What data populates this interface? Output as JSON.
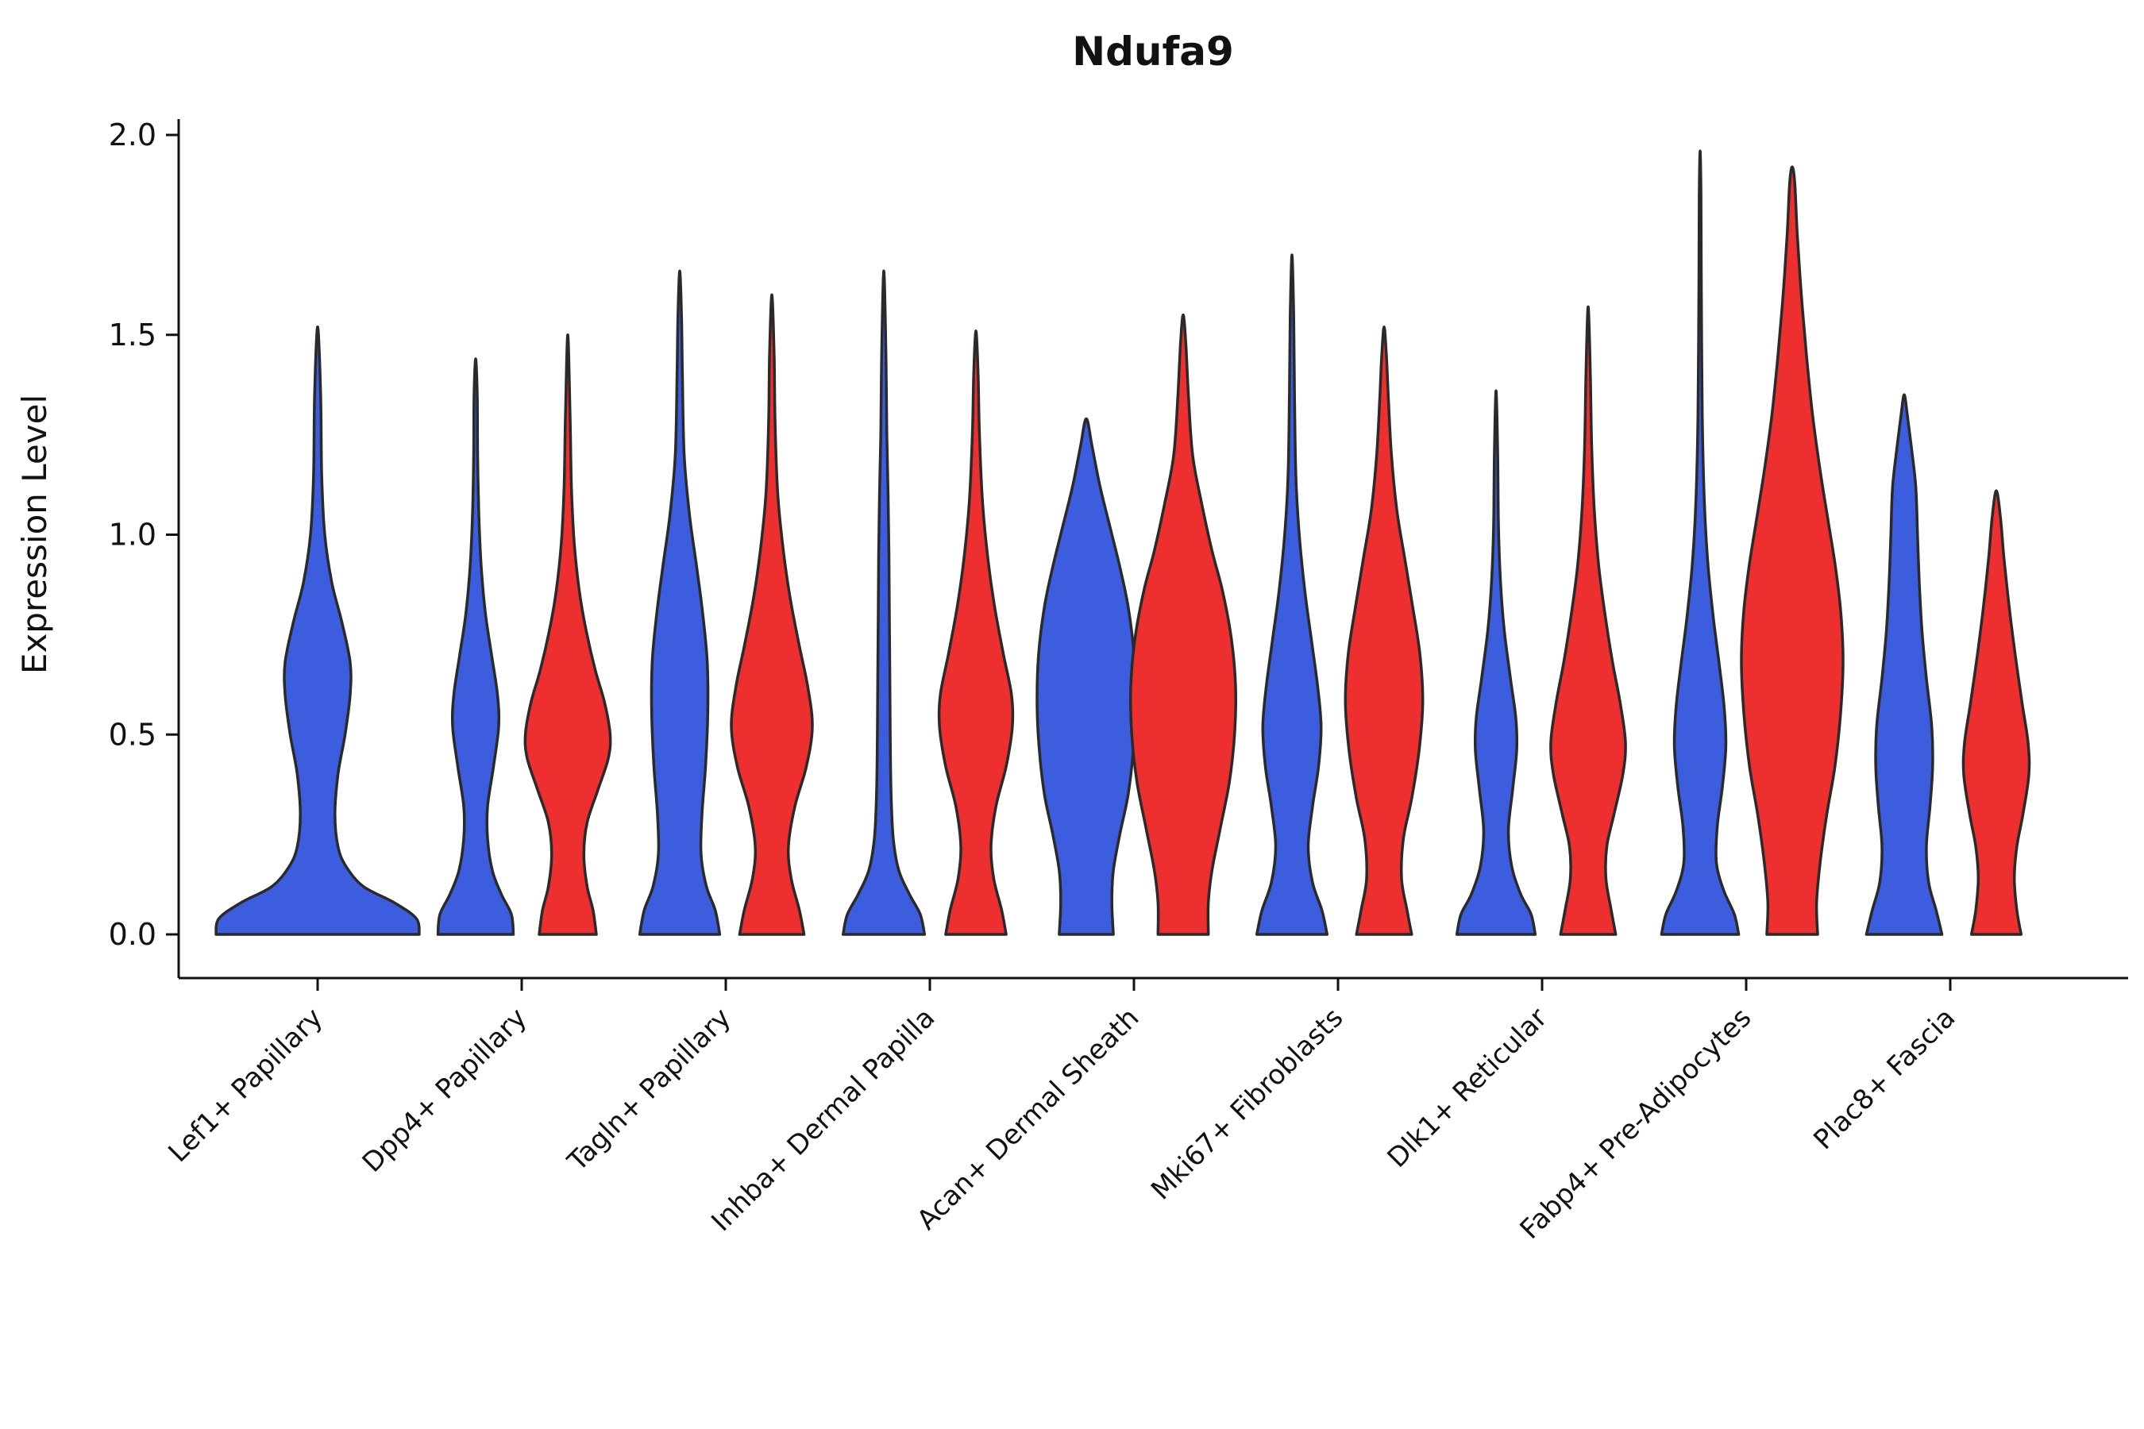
{
  "chart_data": {
    "type": "violin",
    "title": "Ndufa9",
    "ylabel": "Expression Level",
    "xlabel": "",
    "ylim": [
      0.0,
      2.0
    ],
    "yticks": [
      0.0,
      0.5,
      1.0,
      1.5,
      2.0
    ],
    "grid": false,
    "legend": "none",
    "colors": {
      "blue": "#3b5dde",
      "red": "#ee2f2f",
      "edge": "#2a2a2a"
    },
    "categories": [
      "Lef1+ Papillary",
      "Dpp4+ Papillary",
      "Tagln+ Papillary",
      "Inhba+ Dermal Papilla",
      "Acan+ Dermal Sheath",
      "Mki67+ Fibroblasts",
      "Dlk1+ Reticular",
      "Fabp4+ Pre-Adipocytes",
      "Plac8+ Fascia"
    ],
    "violins": [
      {
        "group": 0,
        "category": "Lef1+ Papillary",
        "side": "blue",
        "offset": 0,
        "halfwidth": 128,
        "max_expression": 1.52,
        "profile": [
          [
            0,
            1.0
          ],
          [
            0.04,
            0.97
          ],
          [
            0.08,
            0.75
          ],
          [
            0.12,
            0.45
          ],
          [
            0.17,
            0.28
          ],
          [
            0.22,
            0.2
          ],
          [
            0.3,
            0.17
          ],
          [
            0.4,
            0.2
          ],
          [
            0.5,
            0.27
          ],
          [
            0.6,
            0.32
          ],
          [
            0.68,
            0.32
          ],
          [
            0.78,
            0.24
          ],
          [
            0.88,
            0.14
          ],
          [
            1.0,
            0.07
          ],
          [
            1.15,
            0.04
          ],
          [
            1.35,
            0.03
          ],
          [
            1.52,
            0
          ]
        ]
      },
      {
        "group": 1,
        "category": "Dpp4+ Papillary",
        "side": "blue",
        "offset": -58,
        "halfwidth": 50,
        "max_expression": 1.44,
        "profile": [
          [
            0,
            0.95
          ],
          [
            0.05,
            0.9
          ],
          [
            0.1,
            0.65
          ],
          [
            0.16,
            0.42
          ],
          [
            0.24,
            0.3
          ],
          [
            0.32,
            0.3
          ],
          [
            0.42,
            0.45
          ],
          [
            0.52,
            0.58
          ],
          [
            0.6,
            0.55
          ],
          [
            0.7,
            0.4
          ],
          [
            0.8,
            0.25
          ],
          [
            0.92,
            0.14
          ],
          [
            1.05,
            0.08
          ],
          [
            1.2,
            0.05
          ],
          [
            1.35,
            0.04
          ],
          [
            1.44,
            0
          ]
        ]
      },
      {
        "group": 1,
        "category": "Dpp4+ Papillary",
        "side": "red",
        "offset": 58,
        "halfwidth": 58,
        "max_expression": 1.5,
        "profile": [
          [
            0,
            0.62
          ],
          [
            0.06,
            0.55
          ],
          [
            0.12,
            0.42
          ],
          [
            0.2,
            0.35
          ],
          [
            0.28,
            0.42
          ],
          [
            0.36,
            0.65
          ],
          [
            0.44,
            0.88
          ],
          [
            0.5,
            0.92
          ],
          [
            0.58,
            0.8
          ],
          [
            0.66,
            0.6
          ],
          [
            0.76,
            0.4
          ],
          [
            0.86,
            0.25
          ],
          [
            0.98,
            0.14
          ],
          [
            1.12,
            0.08
          ],
          [
            1.3,
            0.05
          ],
          [
            1.5,
            0
          ]
        ]
      },
      {
        "group": 2,
        "category": "Tagln+ Papillary",
        "side": "blue",
        "offset": -58,
        "halfwidth": 56,
        "max_expression": 1.66,
        "profile": [
          [
            0,
            0.9
          ],
          [
            0.06,
            0.8
          ],
          [
            0.12,
            0.6
          ],
          [
            0.2,
            0.48
          ],
          [
            0.3,
            0.5
          ],
          [
            0.42,
            0.58
          ],
          [
            0.55,
            0.63
          ],
          [
            0.68,
            0.62
          ],
          [
            0.8,
            0.52
          ],
          [
            0.92,
            0.38
          ],
          [
            1.05,
            0.22
          ],
          [
            1.2,
            0.1
          ],
          [
            1.4,
            0.06
          ],
          [
            1.55,
            0.04
          ],
          [
            1.66,
            0
          ]
        ]
      },
      {
        "group": 2,
        "category": "Tagln+ Papillary",
        "side": "red",
        "offset": 58,
        "halfwidth": 58,
        "max_expression": 1.6,
        "profile": [
          [
            0,
            0.7
          ],
          [
            0.06,
            0.6
          ],
          [
            0.14,
            0.42
          ],
          [
            0.22,
            0.36
          ],
          [
            0.32,
            0.5
          ],
          [
            0.42,
            0.75
          ],
          [
            0.52,
            0.88
          ],
          [
            0.62,
            0.78
          ],
          [
            0.72,
            0.6
          ],
          [
            0.84,
            0.4
          ],
          [
            0.96,
            0.25
          ],
          [
            1.1,
            0.13
          ],
          [
            1.28,
            0.07
          ],
          [
            1.45,
            0.05
          ],
          [
            1.6,
            0
          ]
        ]
      },
      {
        "group": 3,
        "category": "Inhba+ Dermal Papilla",
        "side": "blue",
        "offset": -58,
        "halfwidth": 54,
        "max_expression": 1.66,
        "profile": [
          [
            0,
            0.95
          ],
          [
            0.05,
            0.85
          ],
          [
            0.1,
            0.6
          ],
          [
            0.16,
            0.35
          ],
          [
            0.24,
            0.22
          ],
          [
            0.35,
            0.17
          ],
          [
            0.5,
            0.15
          ],
          [
            0.65,
            0.14
          ],
          [
            0.8,
            0.13
          ],
          [
            0.95,
            0.12
          ],
          [
            1.1,
            0.1
          ],
          [
            1.25,
            0.07
          ],
          [
            1.45,
            0.05
          ],
          [
            1.66,
            0
          ]
        ]
      },
      {
        "group": 3,
        "category": "Inhba+ Dermal Papilla",
        "side": "red",
        "offset": 58,
        "halfwidth": 56,
        "max_expression": 1.51,
        "profile": [
          [
            0,
            0.68
          ],
          [
            0.06,
            0.58
          ],
          [
            0.14,
            0.4
          ],
          [
            0.22,
            0.34
          ],
          [
            0.32,
            0.45
          ],
          [
            0.42,
            0.68
          ],
          [
            0.52,
            0.82
          ],
          [
            0.6,
            0.8
          ],
          [
            0.7,
            0.62
          ],
          [
            0.82,
            0.42
          ],
          [
            0.94,
            0.27
          ],
          [
            1.08,
            0.15
          ],
          [
            1.25,
            0.08
          ],
          [
            1.4,
            0.05
          ],
          [
            1.51,
            0
          ]
        ]
      },
      {
        "group": 4,
        "category": "Acan+ Dermal Sheath",
        "side": "blue",
        "offset": -60,
        "halfwidth": 62,
        "max_expression": 1.29,
        "profile": [
          [
            0,
            0.55
          ],
          [
            0.08,
            0.52
          ],
          [
            0.16,
            0.55
          ],
          [
            0.25,
            0.68
          ],
          [
            0.35,
            0.85
          ],
          [
            0.47,
            0.96
          ],
          [
            0.58,
            1.0
          ],
          [
            0.7,
            0.97
          ],
          [
            0.82,
            0.85
          ],
          [
            0.92,
            0.68
          ],
          [
            1.02,
            0.48
          ],
          [
            1.12,
            0.28
          ],
          [
            1.22,
            0.12
          ],
          [
            1.29,
            0
          ]
        ]
      },
      {
        "group": 4,
        "category": "Acan+ Dermal Sheath",
        "side": "red",
        "offset": 62,
        "halfwidth": 66,
        "max_expression": 1.55,
        "profile": [
          [
            0,
            0.48
          ],
          [
            0.08,
            0.48
          ],
          [
            0.16,
            0.55
          ],
          [
            0.26,
            0.7
          ],
          [
            0.38,
            0.88
          ],
          [
            0.5,
            0.98
          ],
          [
            0.62,
            1.0
          ],
          [
            0.74,
            0.92
          ],
          [
            0.86,
            0.75
          ],
          [
            0.96,
            0.55
          ],
          [
            1.08,
            0.35
          ],
          [
            1.2,
            0.18
          ],
          [
            1.35,
            0.1
          ],
          [
            1.48,
            0.05
          ],
          [
            1.55,
            0
          ]
        ]
      },
      {
        "group": 5,
        "category": "Mki67+ Fibroblasts",
        "side": "blue",
        "offset": -58,
        "halfwidth": 54,
        "max_expression": 1.7,
        "profile": [
          [
            0,
            0.82
          ],
          [
            0.06,
            0.7
          ],
          [
            0.13,
            0.48
          ],
          [
            0.22,
            0.38
          ],
          [
            0.32,
            0.48
          ],
          [
            0.42,
            0.62
          ],
          [
            0.52,
            0.68
          ],
          [
            0.62,
            0.6
          ],
          [
            0.74,
            0.45
          ],
          [
            0.86,
            0.3
          ],
          [
            1.0,
            0.17
          ],
          [
            1.15,
            0.09
          ],
          [
            1.35,
            0.06
          ],
          [
            1.55,
            0.04
          ],
          [
            1.7,
            0
          ]
        ]
      },
      {
        "group": 5,
        "category": "Mki67+ Fibroblasts",
        "side": "red",
        "offset": 58,
        "halfwidth": 58,
        "max_expression": 1.52,
        "profile": [
          [
            0,
            0.6
          ],
          [
            0.06,
            0.5
          ],
          [
            0.14,
            0.38
          ],
          [
            0.24,
            0.42
          ],
          [
            0.34,
            0.6
          ],
          [
            0.46,
            0.76
          ],
          [
            0.58,
            0.84
          ],
          [
            0.7,
            0.78
          ],
          [
            0.82,
            0.62
          ],
          [
            0.94,
            0.45
          ],
          [
            1.06,
            0.28
          ],
          [
            1.2,
            0.16
          ],
          [
            1.35,
            0.09
          ],
          [
            1.45,
            0.05
          ],
          [
            1.52,
            0
          ]
        ]
      },
      {
        "group": 6,
        "category": "Dlk1+ Reticular",
        "side": "blue",
        "offset": -58,
        "halfwidth": 52,
        "max_expression": 1.36,
        "profile": [
          [
            0,
            0.95
          ],
          [
            0.05,
            0.85
          ],
          [
            0.1,
            0.6
          ],
          [
            0.17,
            0.38
          ],
          [
            0.26,
            0.3
          ],
          [
            0.36,
            0.4
          ],
          [
            0.46,
            0.5
          ],
          [
            0.54,
            0.48
          ],
          [
            0.64,
            0.35
          ],
          [
            0.76,
            0.2
          ],
          [
            0.88,
            0.11
          ],
          [
            1.02,
            0.06
          ],
          [
            1.2,
            0.04
          ],
          [
            1.36,
            0
          ]
        ]
      },
      {
        "group": 6,
        "category": "Dlk1+ Reticular",
        "side": "red",
        "offset": 58,
        "halfwidth": 56,
        "max_expression": 1.57,
        "profile": [
          [
            0,
            0.62
          ],
          [
            0.06,
            0.52
          ],
          [
            0.14,
            0.4
          ],
          [
            0.22,
            0.42
          ],
          [
            0.3,
            0.58
          ],
          [
            0.4,
            0.78
          ],
          [
            0.48,
            0.84
          ],
          [
            0.58,
            0.72
          ],
          [
            0.68,
            0.55
          ],
          [
            0.8,
            0.38
          ],
          [
            0.92,
            0.24
          ],
          [
            1.06,
            0.14
          ],
          [
            1.22,
            0.08
          ],
          [
            1.4,
            0.05
          ],
          [
            1.57,
            0
          ]
        ]
      },
      {
        "group": 7,
        "category": "Fabp4+ Pre-Adipocytes",
        "side": "blue",
        "offset": -58,
        "halfwidth": 54,
        "max_expression": 1.96,
        "profile": [
          [
            0,
            0.9
          ],
          [
            0.05,
            0.8
          ],
          [
            0.11,
            0.55
          ],
          [
            0.18,
            0.38
          ],
          [
            0.27,
            0.4
          ],
          [
            0.37,
            0.52
          ],
          [
            0.47,
            0.6
          ],
          [
            0.57,
            0.56
          ],
          [
            0.68,
            0.44
          ],
          [
            0.8,
            0.3
          ],
          [
            0.93,
            0.18
          ],
          [
            1.08,
            0.1
          ],
          [
            1.3,
            0.05
          ],
          [
            1.6,
            0.03
          ],
          [
            1.85,
            0.02
          ],
          [
            1.96,
            0
          ]
        ]
      },
      {
        "group": 7,
        "category": "Fabp4+ Pre-Adipocytes",
        "side": "red",
        "offset": 58,
        "halfwidth": 64,
        "max_expression": 1.92,
        "profile": [
          [
            0,
            0.5
          ],
          [
            0.08,
            0.48
          ],
          [
            0.18,
            0.55
          ],
          [
            0.3,
            0.68
          ],
          [
            0.42,
            0.84
          ],
          [
            0.55,
            0.95
          ],
          [
            0.68,
            1.0
          ],
          [
            0.8,
            0.96
          ],
          [
            0.92,
            0.85
          ],
          [
            1.04,
            0.7
          ],
          [
            1.16,
            0.55
          ],
          [
            1.3,
            0.4
          ],
          [
            1.45,
            0.28
          ],
          [
            1.6,
            0.18
          ],
          [
            1.75,
            0.1
          ],
          [
            1.88,
            0.05
          ],
          [
            1.92,
            0
          ]
        ]
      },
      {
        "group": 8,
        "category": "Plac8+ Fascia",
        "side": "blue",
        "offset": -58,
        "halfwidth": 56,
        "max_expression": 1.35,
        "profile": [
          [
            0,
            0.85
          ],
          [
            0.06,
            0.72
          ],
          [
            0.13,
            0.55
          ],
          [
            0.22,
            0.5
          ],
          [
            0.32,
            0.58
          ],
          [
            0.42,
            0.64
          ],
          [
            0.52,
            0.62
          ],
          [
            0.64,
            0.5
          ],
          [
            0.76,
            0.4
          ],
          [
            0.88,
            0.34
          ],
          [
            1.0,
            0.3
          ],
          [
            1.12,
            0.26
          ],
          [
            1.22,
            0.16
          ],
          [
            1.3,
            0.07
          ],
          [
            1.35,
            0
          ]
        ]
      },
      {
        "group": 8,
        "category": "Plac8+ Fascia",
        "side": "red",
        "offset": 58,
        "halfwidth": 54,
        "max_expression": 1.11,
        "profile": [
          [
            0,
            0.58
          ],
          [
            0.06,
            0.48
          ],
          [
            0.14,
            0.42
          ],
          [
            0.22,
            0.48
          ],
          [
            0.3,
            0.62
          ],
          [
            0.4,
            0.76
          ],
          [
            0.48,
            0.74
          ],
          [
            0.58,
            0.6
          ],
          [
            0.7,
            0.44
          ],
          [
            0.82,
            0.3
          ],
          [
            0.94,
            0.18
          ],
          [
            1.04,
            0.1
          ],
          [
            1.11,
            0
          ]
        ]
      }
    ]
  }
}
